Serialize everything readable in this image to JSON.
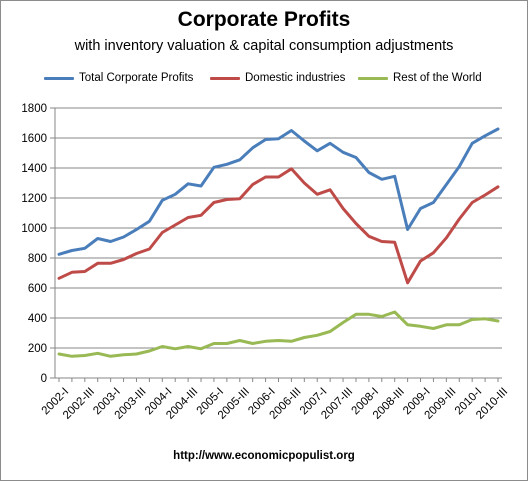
{
  "chart_data": {
    "type": "line",
    "title": "Corporate Profits",
    "subtitle": "with inventory valuation & capital consumption adjustments",
    "source": "http://www.economicpopulist.org",
    "xlabel": "",
    "ylabel": "",
    "ylim": [
      0,
      1800
    ],
    "yticks": [
      0,
      200,
      400,
      600,
      800,
      1000,
      1200,
      1400,
      1600,
      1800
    ],
    "grid": "horizontal",
    "legend_position": "top",
    "x_tick_labels": [
      "2002-I",
      "2002-III",
      "2003-I",
      "2003-III",
      "2004-I",
      "2004-III",
      "2005-I",
      "2005-III",
      "2006-I",
      "2006-III",
      "2007-I",
      "2007-III",
      "2008-I",
      "2008-III",
      "2009-I",
      "2009-III",
      "2010-I",
      "2010-III"
    ],
    "categories": [
      "2002-I",
      "2002-II",
      "2002-III",
      "2002-IV",
      "2003-I",
      "2003-II",
      "2003-III",
      "2003-IV",
      "2004-I",
      "2004-II",
      "2004-III",
      "2004-IV",
      "2005-I",
      "2005-II",
      "2005-III",
      "2005-IV",
      "2006-I",
      "2006-II",
      "2006-III",
      "2006-IV",
      "2007-I",
      "2007-II",
      "2007-III",
      "2007-IV",
      "2008-I",
      "2008-II",
      "2008-III",
      "2008-IV",
      "2009-I",
      "2009-II",
      "2009-III",
      "2009-IV",
      "2010-I",
      "2010-II",
      "2010-III"
    ],
    "series": [
      {
        "name": "Total Corporate Profits",
        "color": "#4a7ebb",
        "values": [
          825,
          850,
          865,
          930,
          910,
          940,
          990,
          1045,
          1185,
          1225,
          1295,
          1280,
          1405,
          1425,
          1455,
          1535,
          1590,
          1595,
          1650,
          1580,
          1515,
          1565,
          1505,
          1470,
          1370,
          1325,
          1345,
          990,
          1130,
          1170,
          1290,
          1410,
          1565,
          1615,
          1660
        ]
      },
      {
        "name": "Domestic industries",
        "color": "#be4b48",
        "values": [
          665,
          705,
          710,
          765,
          765,
          790,
          830,
          860,
          970,
          1020,
          1070,
          1085,
          1170,
          1190,
          1195,
          1290,
          1340,
          1340,
          1395,
          1300,
          1225,
          1255,
          1130,
          1030,
          945,
          910,
          905,
          635,
          780,
          835,
          935,
          1060,
          1170,
          1220,
          1275
        ]
      },
      {
        "name": "Rest of the World",
        "color": "#98b954",
        "values": [
          160,
          145,
          150,
          165,
          145,
          155,
          160,
          180,
          210,
          195,
          210,
          195,
          230,
          230,
          250,
          230,
          245,
          250,
          245,
          270,
          285,
          310,
          370,
          425,
          425,
          410,
          440,
          355,
          345,
          330,
          355,
          355,
          390,
          395,
          380
        ]
      }
    ]
  }
}
